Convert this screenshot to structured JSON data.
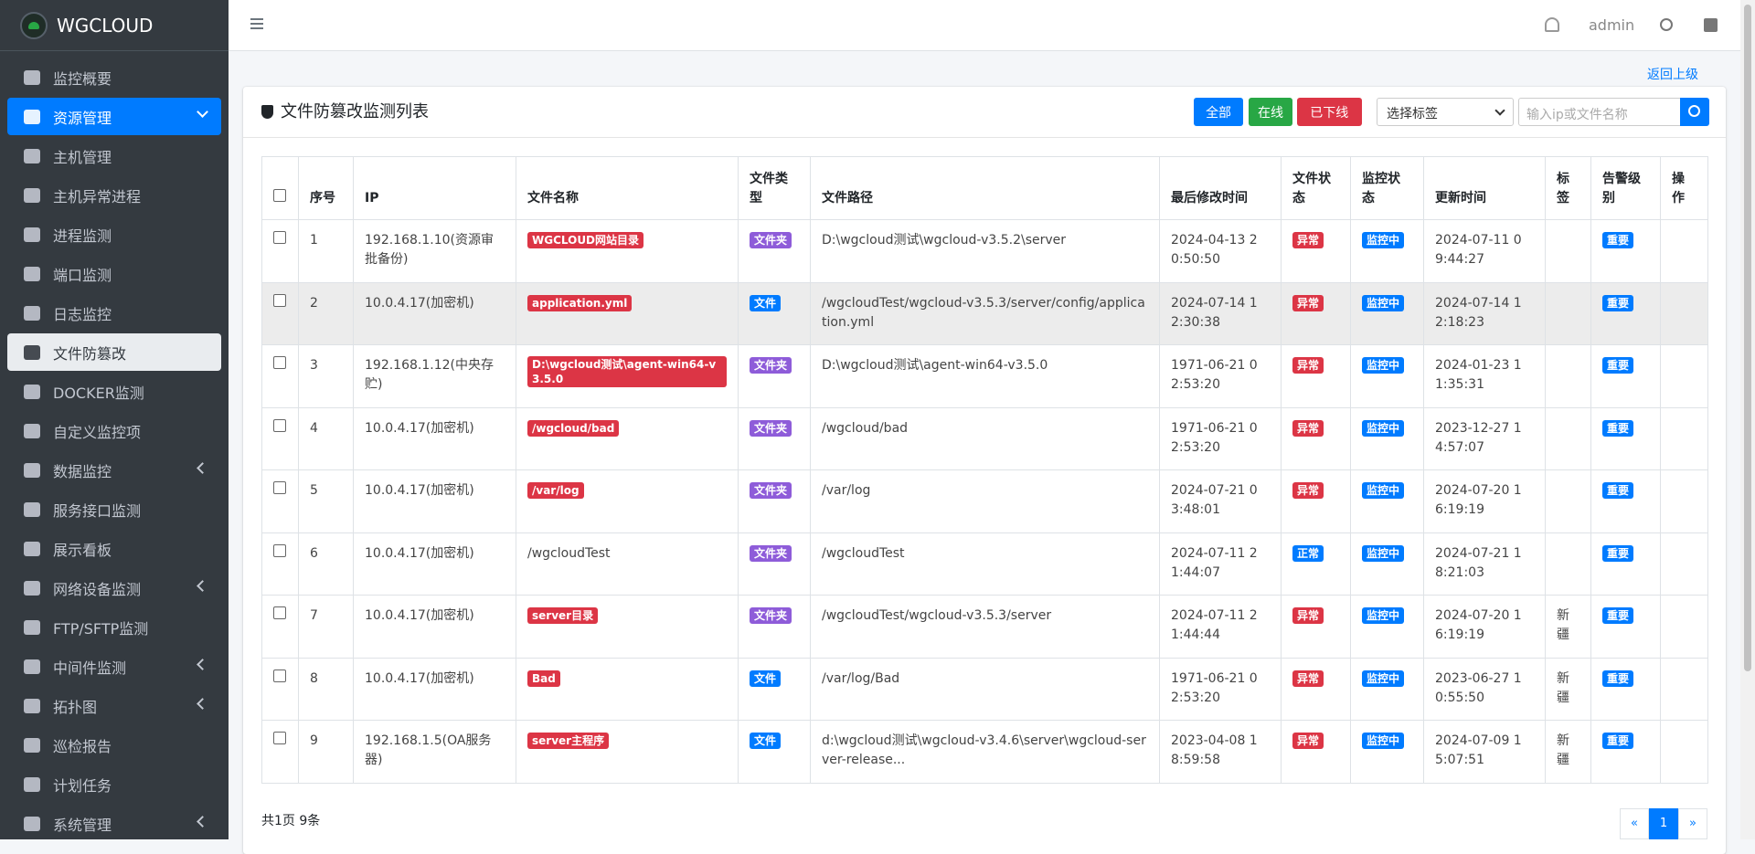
{
  "brand": "WGCLOUD",
  "menu": [
    {
      "label": "监控概要"
    },
    {
      "label": "资源管理",
      "state": "active",
      "arrow": true
    },
    {
      "label": "主机管理"
    },
    {
      "label": "主机异常进程"
    },
    {
      "label": "进程监测"
    },
    {
      "label": "端口监测"
    },
    {
      "label": "日志监控"
    },
    {
      "label": "文件防篡改",
      "state": "selected"
    },
    {
      "label": "DOCKER监测"
    },
    {
      "label": "自定义监控项"
    },
    {
      "label": "数据监控",
      "arrow": true
    },
    {
      "label": "服务接口监测"
    },
    {
      "label": "展示看板"
    },
    {
      "label": "网络设备监测",
      "arrow": true
    },
    {
      "label": "FTP/SFTP监测"
    },
    {
      "label": "中间件监测",
      "arrow": true
    },
    {
      "label": "拓扑图",
      "arrow": true
    },
    {
      "label": "巡检报告"
    },
    {
      "label": "计划任务"
    },
    {
      "label": "系统管理",
      "arrow": true
    }
  ],
  "header": {
    "user": "admin"
  },
  "back_link": "返回上级",
  "card": {
    "title": "文件防篡改监测列表",
    "buttons": [
      {
        "label": "全部",
        "color": "#007bff"
      },
      {
        "label": "在线",
        "color": "#28a745"
      },
      {
        "label": "已下线",
        "color": "#dc3545"
      }
    ],
    "select": "选择标签",
    "search_placeholder": "输入ip或文件名称"
  },
  "table": {
    "columns": [
      "序号",
      "IP",
      "文件名称",
      "文件类型",
      "文件路径",
      "最后修改时间",
      "文件状态",
      "监控状态",
      "更新时间",
      "标签",
      "告警级别",
      "操作"
    ],
    "rows": [
      {
        "no": 1,
        "ip": "192.168.1.10(资源审批备份)",
        "name": {
          "text": "WGCLOUD网站目录",
          "color": "#dc3545"
        },
        "type": {
          "text": "文件夹",
          "color": "#8e5cd9"
        },
        "path": "D:\\wgcloud测试\\wgcloud-v3.5.2\\server",
        "modified": "2024-04-13 20:50:50",
        "file_status": {
          "text": "异常",
          "color": "#dc3545"
        },
        "monitor_status": {
          "text": "监控中",
          "color": "#007bff"
        },
        "updated": "2024-07-11 09:44:27",
        "tag": null,
        "level": {
          "text": "重要",
          "color": "#007bff"
        }
      },
      {
        "no": 2,
        "ip": "10.0.4.17(加密机)",
        "name": {
          "text": "application.yml",
          "color": "#dc3545"
        },
        "type": {
          "text": "文件",
          "color": "#007bff"
        },
        "path": "/wgcloudTest/wgcloud-v3.5.3/server/config/application.yml",
        "modified": "2024-07-14 12:30:38",
        "file_status": {
          "text": "异常",
          "color": "#dc3545"
        },
        "monitor_status": {
          "text": "监控中",
          "color": "#007bff"
        },
        "updated": "2024-07-14 12:18:23",
        "tag": null,
        "level": {
          "text": "重要",
          "color": "#007bff"
        }
      },
      {
        "no": 3,
        "ip": "192.168.1.12(中央存贮)",
        "name": {
          "text": "D:\\wgcloud测试\\agent-win64-v3.5.0",
          "color": "#dc3545"
        },
        "type": {
          "text": "文件夹",
          "color": "#8e5cd9"
        },
        "path": "D:\\wgcloud测试\\agent-win64-v3.5.0",
        "modified": "1971-06-21 02:53:20",
        "file_status": {
          "text": "异常",
          "color": "#dc3545"
        },
        "monitor_status": {
          "text": "监控中",
          "color": "#007bff"
        },
        "updated": "2024-01-23 11:35:31",
        "tag": null,
        "level": {
          "text": "重要",
          "color": "#007bff"
        }
      },
      {
        "no": 4,
        "ip": "10.0.4.17(加密机)",
        "name": {
          "text": "/wgcloud/bad",
          "color": "#dc3545"
        },
        "type": {
          "text": "文件夹",
          "color": "#8e5cd9"
        },
        "path": "/wgcloud/bad",
        "modified": "1971-06-21 02:53:20",
        "file_status": {
          "text": "异常",
          "color": "#dc3545"
        },
        "monitor_status": {
          "text": "监控中",
          "color": "#007bff"
        },
        "updated": "2023-12-27 14:57:07",
        "tag": null,
        "level": {
          "text": "重要",
          "color": "#007bff"
        }
      },
      {
        "no": 5,
        "ip": "10.0.4.17(加密机)",
        "name": {
          "text": "/var/log",
          "color": "#dc3545"
        },
        "type": {
          "text": "文件夹",
          "color": "#8e5cd9"
        },
        "path": "/var/log",
        "modified": "2024-07-21 03:48:01",
        "file_status": {
          "text": "异常",
          "color": "#dc3545"
        },
        "monitor_status": {
          "text": "监控中",
          "color": "#007bff"
        },
        "updated": "2024-07-20 16:19:19",
        "tag": null,
        "level": {
          "text": "重要",
          "color": "#007bff"
        }
      },
      {
        "no": 6,
        "ip": "10.0.4.17(加密机)",
        "name": {
          "text": "/wgcloudTest",
          "color": null
        },
        "type": {
          "text": "文件夹",
          "color": "#8e5cd9"
        },
        "path": "/wgcloudTest",
        "modified": "2024-07-11 21:44:07",
        "file_status": {
          "text": "正常",
          "color": "#007bff"
        },
        "monitor_status": {
          "text": "监控中",
          "color": "#007bff"
        },
        "updated": "2024-07-21 18:21:03",
        "tag": null,
        "level": {
          "text": "重要",
          "color": "#007bff"
        }
      },
      {
        "no": 7,
        "ip": "10.0.4.17(加密机)",
        "name": {
          "text": "server目录",
          "color": "#dc3545"
        },
        "type": {
          "text": "文件夹",
          "color": "#8e5cd9"
        },
        "path": "/wgcloudTest/wgcloud-v3.5.3/server",
        "modified": "2024-07-11 21:44:44",
        "file_status": {
          "text": "异常",
          "color": "#dc3545"
        },
        "monitor_status": {
          "text": "监控中",
          "color": "#007bff"
        },
        "updated": "2024-07-20 16:19:19",
        "tag": "新疆",
        "level": {
          "text": "重要",
          "color": "#007bff"
        }
      },
      {
        "no": 8,
        "ip": "10.0.4.17(加密机)",
        "name": {
          "text": "Bad",
          "color": "#dc3545"
        },
        "type": {
          "text": "文件",
          "color": "#007bff"
        },
        "path": "/var/log/Bad",
        "modified": "1971-06-21 02:53:20",
        "file_status": {
          "text": "异常",
          "color": "#dc3545"
        },
        "monitor_status": {
          "text": "监控中",
          "color": "#007bff"
        },
        "updated": "2023-06-27 10:55:50",
        "tag": "新疆",
        "level": {
          "text": "重要",
          "color": "#007bff"
        }
      },
      {
        "no": 9,
        "ip": "192.168.1.5(OA服务器)",
        "name": {
          "text": "server主程序",
          "color": "#dc3545"
        },
        "type": {
          "text": "文件",
          "color": "#007bff"
        },
        "path": "d:\\wgcloud测试\\wgcloud-v3.4.6\\server\\wgcloud-server-release...",
        "modified": "2023-04-08 18:59:58",
        "file_status": {
          "text": "异常",
          "color": "#dc3545"
        },
        "monitor_status": {
          "text": "监控中",
          "color": "#007bff"
        },
        "updated": "2024-07-09 15:07:51",
        "tag": "新疆",
        "level": {
          "text": "重要",
          "color": "#007bff"
        }
      }
    ]
  },
  "footer": {
    "summary": "共1页 9条",
    "pagination": [
      "«",
      "1",
      "»"
    ]
  }
}
